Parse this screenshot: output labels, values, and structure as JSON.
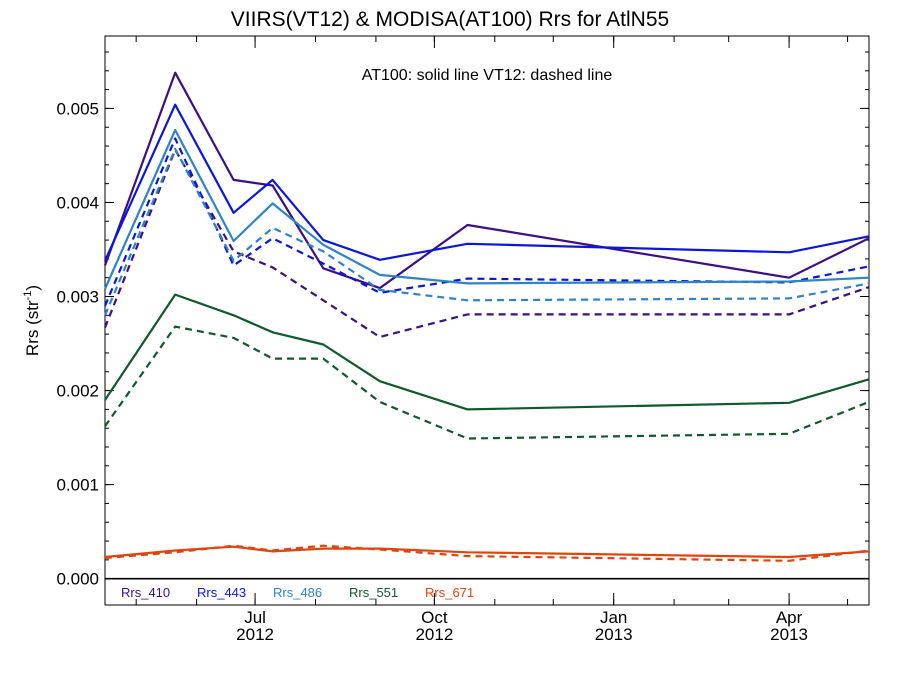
{
  "chart_data": {
    "type": "line",
    "title": "VIIRS(VT12) & MODISA(AT100)  Rrs for AtlN55",
    "note": "AT100: solid line   VT12: dashed line",
    "ylabel": "Rrs (str",
    "ylabel_sup": "-1",
    "ylabel_end": ")",
    "ylim": [
      -0.00028,
      0.00577
    ],
    "xlim": [
      "2012-04-15",
      "2013-05-12"
    ],
    "yticks": [
      "0.000",
      "0.001",
      "0.002",
      "0.003",
      "0.004",
      "0.005"
    ],
    "ytick_values": [
      0,
      0.001,
      0.002,
      0.003,
      0.004,
      0.005
    ],
    "xticks": [
      {
        "date": "2012-07-01",
        "label1": "Jul",
        "label2": "2012"
      },
      {
        "date": "2012-10-01",
        "label1": "Oct",
        "label2": "2012"
      },
      {
        "date": "2013-01-01",
        "label1": "Jan",
        "label2": "2013"
      },
      {
        "date": "2013-04-01",
        "label1": "Apr",
        "label2": "2013"
      }
    ],
    "zero_line": true,
    "legend_position": "bottom-left",
    "line_styles": {
      "solid": "AT100",
      "dashed": "VT12"
    },
    "series": [
      {
        "name": "Rrs_410",
        "color": "#3d0f86",
        "solid": [
          [
            "2012-04-15",
            0.00333
          ],
          [
            "2012-05-21",
            0.00538
          ],
          [
            "2012-06-20",
            0.00424
          ],
          [
            "2012-07-10",
            0.00418
          ],
          [
            "2012-08-05",
            0.0033
          ],
          [
            "2012-09-03",
            0.00309
          ],
          [
            "2012-10-18",
            0.00376
          ],
          [
            "2013-04-01",
            0.0032
          ],
          [
            "2013-05-12",
            0.00362
          ]
        ],
        "dashed": [
          [
            "2012-04-15",
            0.00267
          ],
          [
            "2012-05-21",
            0.00456
          ],
          [
            "2012-06-20",
            0.00348
          ],
          [
            "2012-07-10",
            0.00331
          ],
          [
            "2012-08-05",
            0.00296
          ],
          [
            "2012-09-03",
            0.00257
          ],
          [
            "2012-10-18",
            0.00281
          ],
          [
            "2013-04-01",
            0.00281
          ],
          [
            "2013-05-12",
            0.0031
          ]
        ]
      },
      {
        "name": "Rrs_443",
        "color": "#0a16e0",
        "solid": [
          [
            "2012-04-15",
            0.00338
          ],
          [
            "2012-05-21",
            0.00504
          ],
          [
            "2012-06-20",
            0.00389
          ],
          [
            "2012-07-10",
            0.00424
          ],
          [
            "2012-08-05",
            0.0036
          ],
          [
            "2012-09-03",
            0.00339
          ],
          [
            "2012-10-18",
            0.00356
          ],
          [
            "2013-04-01",
            0.00347
          ],
          [
            "2013-05-12",
            0.00364
          ]
        ],
        "dashed": [
          [
            "2012-04-15",
            0.0029
          ],
          [
            "2012-05-21",
            0.00468
          ],
          [
            "2012-06-20",
            0.00333
          ],
          [
            "2012-07-10",
            0.00362
          ],
          [
            "2012-08-05",
            0.00335
          ],
          [
            "2012-09-03",
            0.00304
          ],
          [
            "2012-10-18",
            0.00319
          ],
          [
            "2013-04-01",
            0.00315
          ],
          [
            "2013-05-12",
            0.00332
          ]
        ]
      },
      {
        "name": "Rrs_486",
        "color": "#2d84c8",
        "solid": [
          [
            "2012-04-15",
            0.00308
          ],
          [
            "2012-05-21",
            0.00477
          ],
          [
            "2012-06-20",
            0.00359
          ],
          [
            "2012-07-10",
            0.00399
          ],
          [
            "2012-08-05",
            0.00355
          ],
          [
            "2012-09-03",
            0.00323
          ],
          [
            "2012-10-18",
            0.00314
          ],
          [
            "2013-04-01",
            0.00316
          ],
          [
            "2013-05-12",
            0.0032
          ]
        ],
        "dashed": [
          [
            "2012-04-15",
            0.0028
          ],
          [
            "2012-05-21",
            0.00457
          ],
          [
            "2012-06-20",
            0.00338
          ],
          [
            "2012-07-10",
            0.00373
          ],
          [
            "2012-08-05",
            0.00348
          ],
          [
            "2012-09-03",
            0.00307
          ],
          [
            "2012-10-18",
            0.00296
          ],
          [
            "2013-04-01",
            0.00298
          ],
          [
            "2013-05-12",
            0.00314
          ]
        ]
      },
      {
        "name": "Rrs_551",
        "color": "#0f5a2a",
        "solid": [
          [
            "2012-04-15",
            0.0019
          ],
          [
            "2012-05-21",
            0.00302
          ],
          [
            "2012-06-20",
            0.0028
          ],
          [
            "2012-07-10",
            0.00262
          ],
          [
            "2012-08-05",
            0.00249
          ],
          [
            "2012-09-03",
            0.0021
          ],
          [
            "2012-10-18",
            0.0018
          ],
          [
            "2013-04-01",
            0.00187
          ],
          [
            "2013-05-12",
            0.00212
          ]
        ],
        "dashed": [
          [
            "2012-04-15",
            0.00162
          ],
          [
            "2012-05-21",
            0.00268
          ],
          [
            "2012-06-20",
            0.00256
          ],
          [
            "2012-07-10",
            0.00234
          ],
          [
            "2012-08-05",
            0.00234
          ],
          [
            "2012-09-03",
            0.00188
          ],
          [
            "2012-10-18",
            0.00149
          ],
          [
            "2013-04-01",
            0.00154
          ],
          [
            "2013-05-12",
            0.00188
          ]
        ]
      },
      {
        "name": "Rrs_671",
        "color": "#e0450d",
        "solid": [
          [
            "2012-04-15",
            0.00023
          ],
          [
            "2012-05-21",
            0.0003
          ],
          [
            "2012-06-20",
            0.00034
          ],
          [
            "2012-07-10",
            0.00029
          ],
          [
            "2012-08-05",
            0.00032
          ],
          [
            "2012-09-03",
            0.00032
          ],
          [
            "2012-10-18",
            0.00028
          ],
          [
            "2013-04-01",
            0.00023
          ],
          [
            "2013-05-12",
            0.00029
          ]
        ],
        "dashed": [
          [
            "2012-04-15",
            0.00022
          ],
          [
            "2012-05-21",
            0.00028
          ],
          [
            "2012-06-20",
            0.00035
          ],
          [
            "2012-07-10",
            0.0003
          ],
          [
            "2012-08-05",
            0.00035
          ],
          [
            "2012-09-03",
            0.00031
          ],
          [
            "2012-10-18",
            0.00024
          ],
          [
            "2013-04-01",
            0.00019
          ],
          [
            "2013-05-12",
            0.0003
          ]
        ]
      }
    ]
  }
}
